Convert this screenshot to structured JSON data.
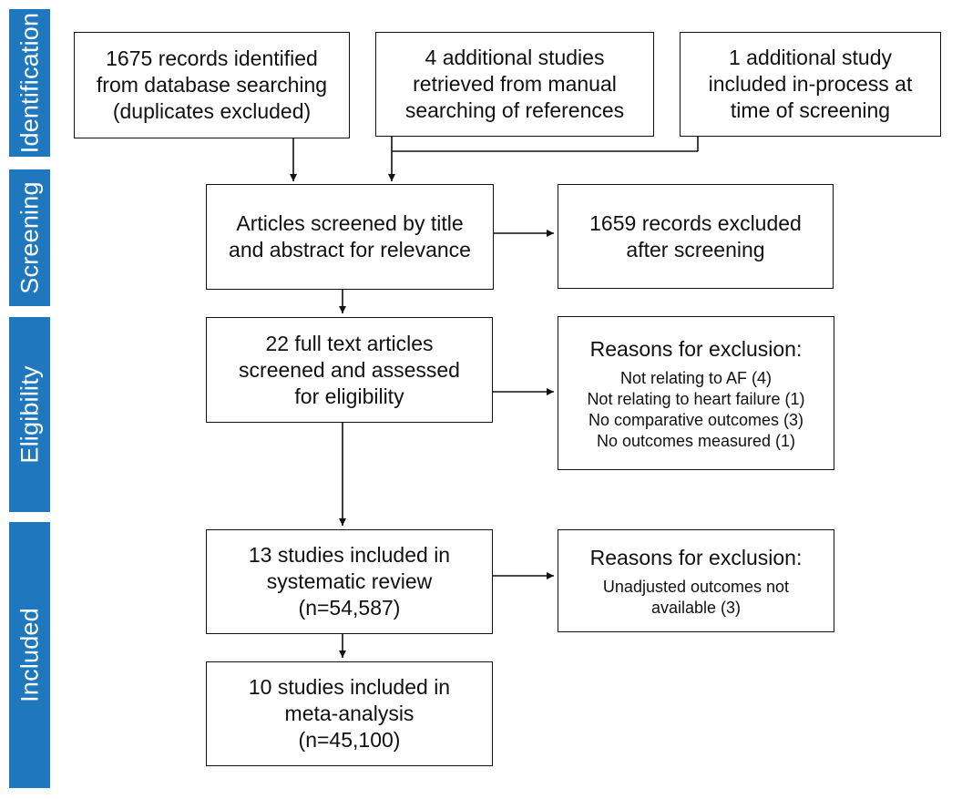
{
  "stages": {
    "identification": "Identification",
    "screening": "Screening",
    "eligibility": "Eligibility",
    "included": "Included"
  },
  "boxes": {
    "database": [
      "1675 records identified",
      "from database searching",
      "(duplicates excluded)"
    ],
    "manual": [
      "4 additional studies",
      "retrieved from manual",
      "searching of references"
    ],
    "in_process": [
      "1 additional study",
      "included in-process at",
      "time of screening"
    ],
    "screened": [
      "Articles screened by title",
      "and abstract for relevance"
    ],
    "excluded_screening": [
      "1659 records excluded",
      "after screening"
    ],
    "full_text": [
      "22 full text articles",
      "screened and assessed",
      "for eligibility"
    ],
    "exclusion_reasons_1": {
      "heading": "Reasons for exclusion:",
      "items": [
        "Not relating to AF (4)",
        "Not relating to heart failure (1)",
        "No comparative outcomes (3)",
        "No outcomes measured (1)"
      ]
    },
    "systematic_review": [
      "13 studies included in",
      "systematic review",
      "(n=54,587)"
    ],
    "exclusion_reasons_2": {
      "heading": "Reasons for exclusion:",
      "items": [
        "Unadjusted outcomes not",
        "available (3)"
      ]
    },
    "meta_analysis": [
      "10 studies included in",
      "meta-analysis",
      "(n=45,100)"
    ]
  }
}
